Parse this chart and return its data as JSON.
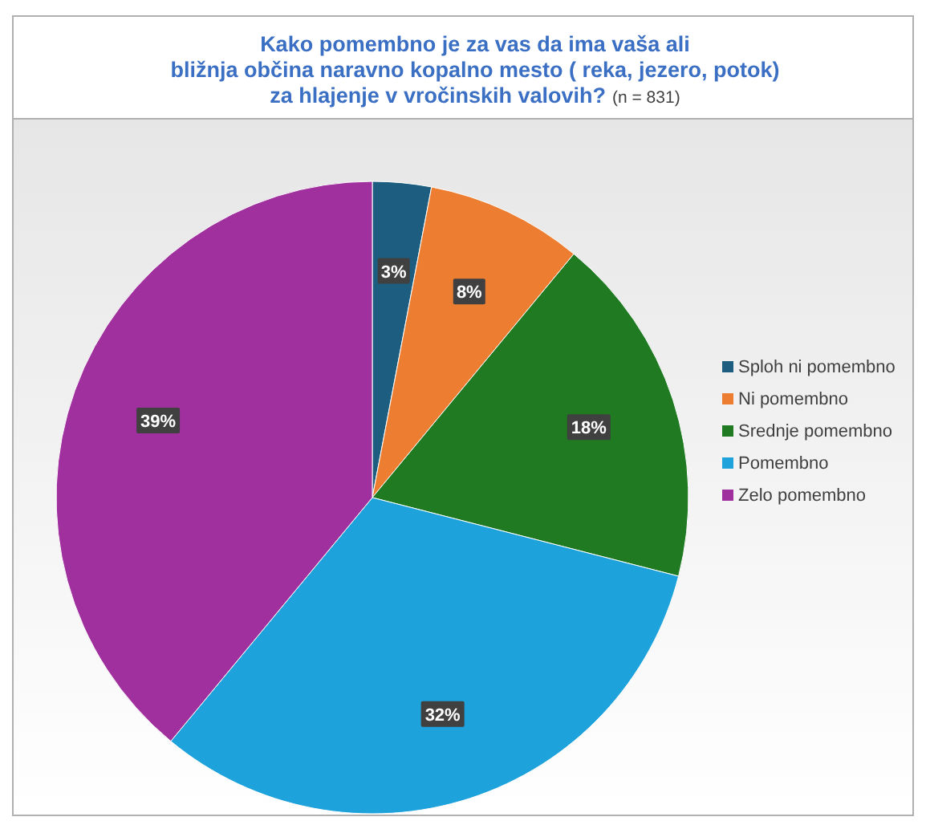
{
  "chart_data": {
    "type": "pie",
    "title": "Kako pomembno je za vas da ima vaša ali\nbližnja občina naravno kopalno mesto ( reka, jezero, potok)\nza hlajenje v vročinskih valovih?",
    "subtitle": "(n = 831)",
    "categories": [
      "Sploh ni pomembno",
      "Ni pomembno",
      "Srednje pomembno",
      "Pomembno",
      "Zelo pomembno"
    ],
    "values": [
      3,
      8,
      18,
      32,
      39
    ],
    "value_labels": [
      "3%",
      "8%",
      "18%",
      "32%",
      "39%"
    ],
    "colors": [
      "#1d5e80",
      "#ed7d31",
      "#1f7a22",
      "#1ea2dc",
      "#a0309e"
    ],
    "legend": "right"
  }
}
